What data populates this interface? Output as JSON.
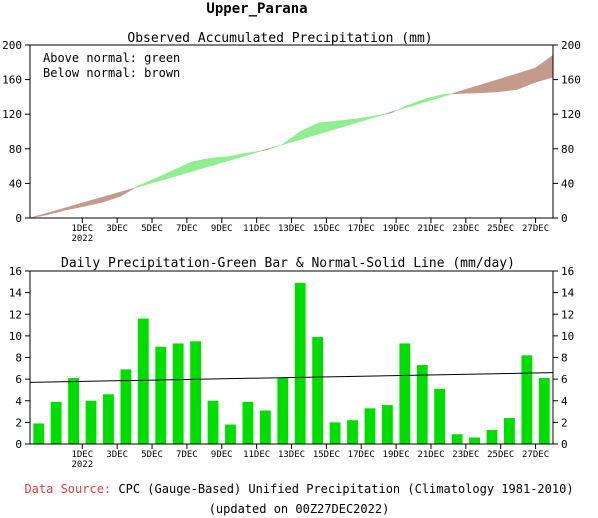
{
  "region_title": "Upper_Parana",
  "footer": {
    "source_label": "Data Source:",
    "source_text": "CPC (Gauge-Based) Unified Precipitation (Climatology 1981-2010)",
    "updated": "(updated on 00Z27DEC2022)"
  },
  "colors": {
    "above": "#90ee90",
    "below": "#c49a8c",
    "bar": "#00dd00",
    "source_label": "#e03c3c"
  },
  "chart_data": [
    {
      "type": "area",
      "title": "Observed Accumulated Precipitation (mm)",
      "legend": [
        "Above normal: green",
        "Below normal: brown"
      ],
      "legend_position": "top-left",
      "x_tick_labels": [
        "1DEC",
        "3DEC",
        "5DEC",
        "7DEC",
        "9DEC",
        "11DEC",
        "13DEC",
        "15DEC",
        "17DEC",
        "19DEC",
        "21DEC",
        "23DEC",
        "25DEC",
        "27DEC"
      ],
      "x_tick_year": "2022",
      "ylim": [
        0,
        200
      ],
      "y_ticks": [
        0,
        40,
        80,
        120,
        160,
        200
      ],
      "day_start": -1,
      "observed": [
        0,
        4,
        9.4,
        13.5,
        18.2,
        25.1,
        37,
        46.1,
        55.5,
        65,
        69.1,
        71,
        75,
        78.1,
        85,
        100,
        109.9,
        112,
        114.3,
        117.6,
        121.3,
        130.7,
        138.1,
        143.2,
        144.1,
        144.8,
        146.1,
        148.6,
        156.9,
        163
      ],
      "normal": [
        0,
        5.7,
        11.5,
        17.3,
        23.1,
        28.9,
        34.7,
        40.6,
        46.4,
        52.3,
        58.2,
        64.1,
        70.0,
        76.0,
        81.9,
        87.9,
        93.9,
        99.9,
        105.9,
        112.0,
        118.0,
        124.1,
        130.2,
        136.3,
        142.4,
        148.6,
        154.7,
        160.9,
        167.1,
        173.4,
        188
      ]
    },
    {
      "type": "bar",
      "title": "Daily Precipitation-Green Bar & Normal-Solid Line (mm/day)",
      "x_tick_labels": [
        "1DEC",
        "3DEC",
        "5DEC",
        "7DEC",
        "9DEC",
        "11DEC",
        "13DEC",
        "15DEC",
        "17DEC",
        "19DEC",
        "21DEC",
        "23DEC",
        "25DEC",
        "27DEC"
      ],
      "x_tick_year": "2022",
      "ylim": [
        0,
        16
      ],
      "y_ticks": [
        0,
        2,
        4,
        6,
        8,
        10,
        12,
        14,
        16
      ],
      "day_start": -1,
      "values": [
        1.9,
        3.9,
        6.1,
        4.0,
        4.6,
        6.9,
        11.6,
        9.0,
        9.3,
        9.5,
        4.0,
        1.8,
        3.9,
        3.1,
        6.1,
        14.9,
        9.9,
        2.0,
        2.2,
        3.3,
        3.6,
        9.3,
        7.3,
        5.1,
        0.9,
        0.6,
        1.3,
        2.4,
        8.2,
        6.1
      ],
      "normal_line": [
        5.7,
        6.6
      ]
    }
  ]
}
